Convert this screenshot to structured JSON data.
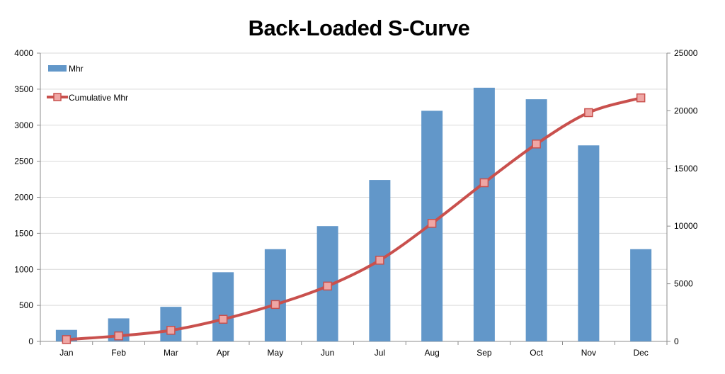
{
  "chart_data": {
    "type": "bar+line",
    "title": "Back-Loaded S-Curve",
    "categories": [
      "Jan",
      "Feb",
      "Mar",
      "Apr",
      "May",
      "Jun",
      "Jul",
      "Aug",
      "Sep",
      "Oct",
      "Nov",
      "Dec"
    ],
    "series": [
      {
        "name": "Mhr",
        "kind": "bar",
        "axis": "left",
        "color": "#6297C9",
        "values": [
          160,
          320,
          480,
          960,
          1280,
          1600,
          2240,
          3200,
          3520,
          3360,
          2720,
          1280
        ]
      },
      {
        "name": "Cumulative Mhr",
        "kind": "line",
        "axis": "right",
        "color": "#C9504D",
        "marker_fill": "#EFA7A5",
        "values": [
          160,
          480,
          960,
          1920,
          3200,
          4800,
          7040,
          10240,
          13760,
          17120,
          19840,
          21120
        ]
      }
    ],
    "y_left": {
      "min": 0,
      "max": 4000,
      "step": 500,
      "ticks": [
        "0",
        "500",
        "1000",
        "1500",
        "2000",
        "2500",
        "3000",
        "3500",
        "4000"
      ]
    },
    "y_right": {
      "min": 0,
      "max": 25000,
      "step": 5000,
      "ticks": [
        "0",
        "5000",
        "10000",
        "15000",
        "20000",
        "25000"
      ]
    },
    "grid": true,
    "legend_position": "top-left"
  }
}
